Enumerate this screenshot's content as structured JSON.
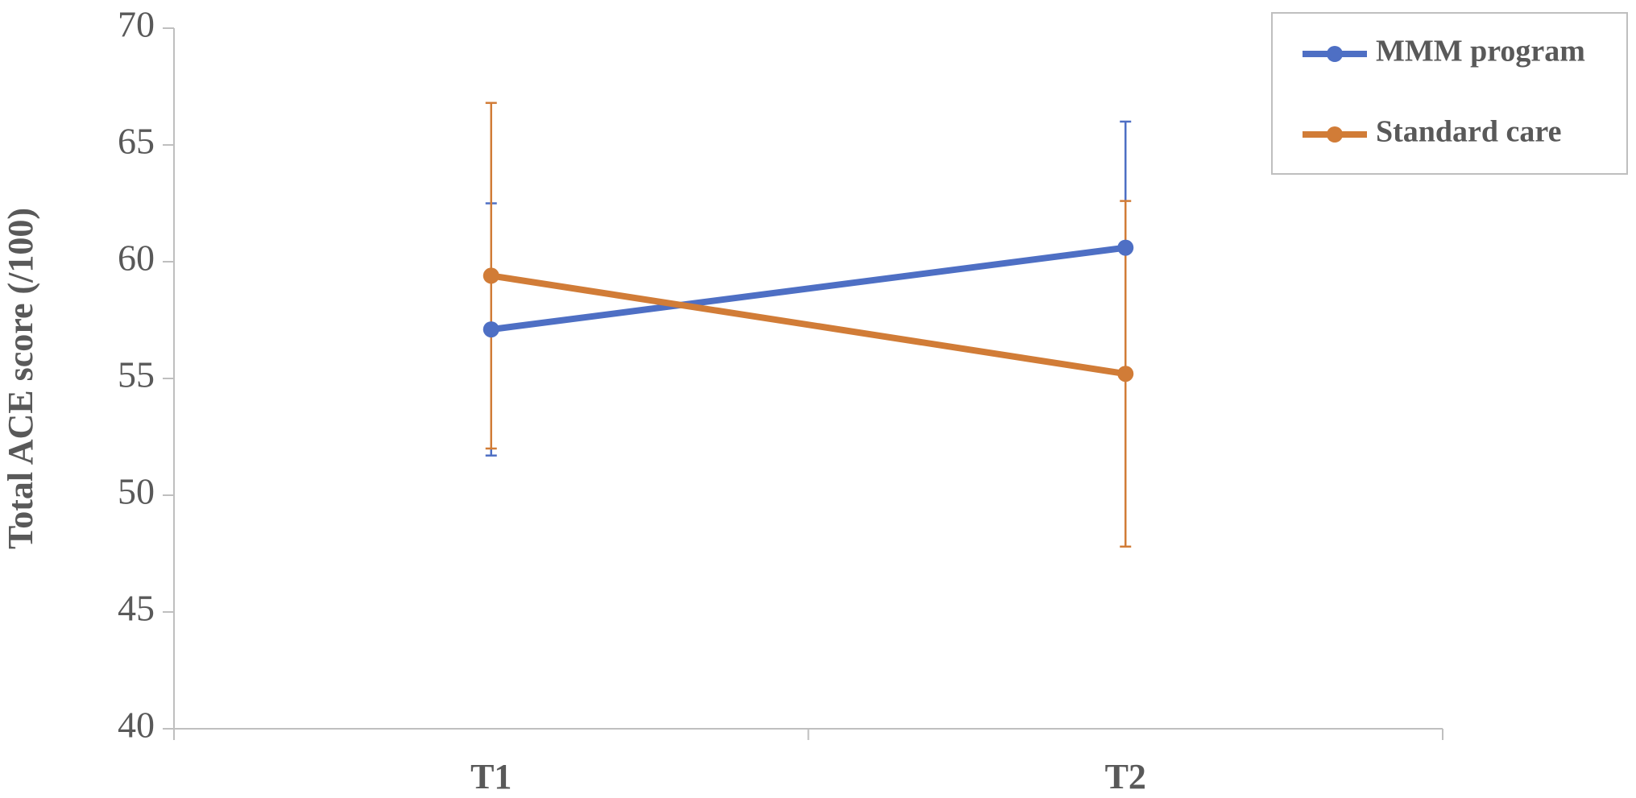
{
  "chart_data": {
    "type": "line",
    "y_label": "Total ACE score (/100)",
    "categories": [
      "T1",
      "T2"
    ],
    "series": [
      {
        "name": "MMM program",
        "color": "#4e6fc4",
        "values": [
          57.1,
          60.6
        ],
        "errors": [
          5.4,
          5.4
        ]
      },
      {
        "name": "Standard care",
        "color": "#d17c37",
        "values": [
          59.4,
          55.2
        ],
        "errors": [
          7.4,
          7.4
        ]
      }
    ],
    "ylim": [
      40,
      70
    ],
    "yticks": [
      40,
      45,
      50,
      55,
      60,
      65,
      70
    ],
    "grid": false,
    "legend": "top-right"
  }
}
